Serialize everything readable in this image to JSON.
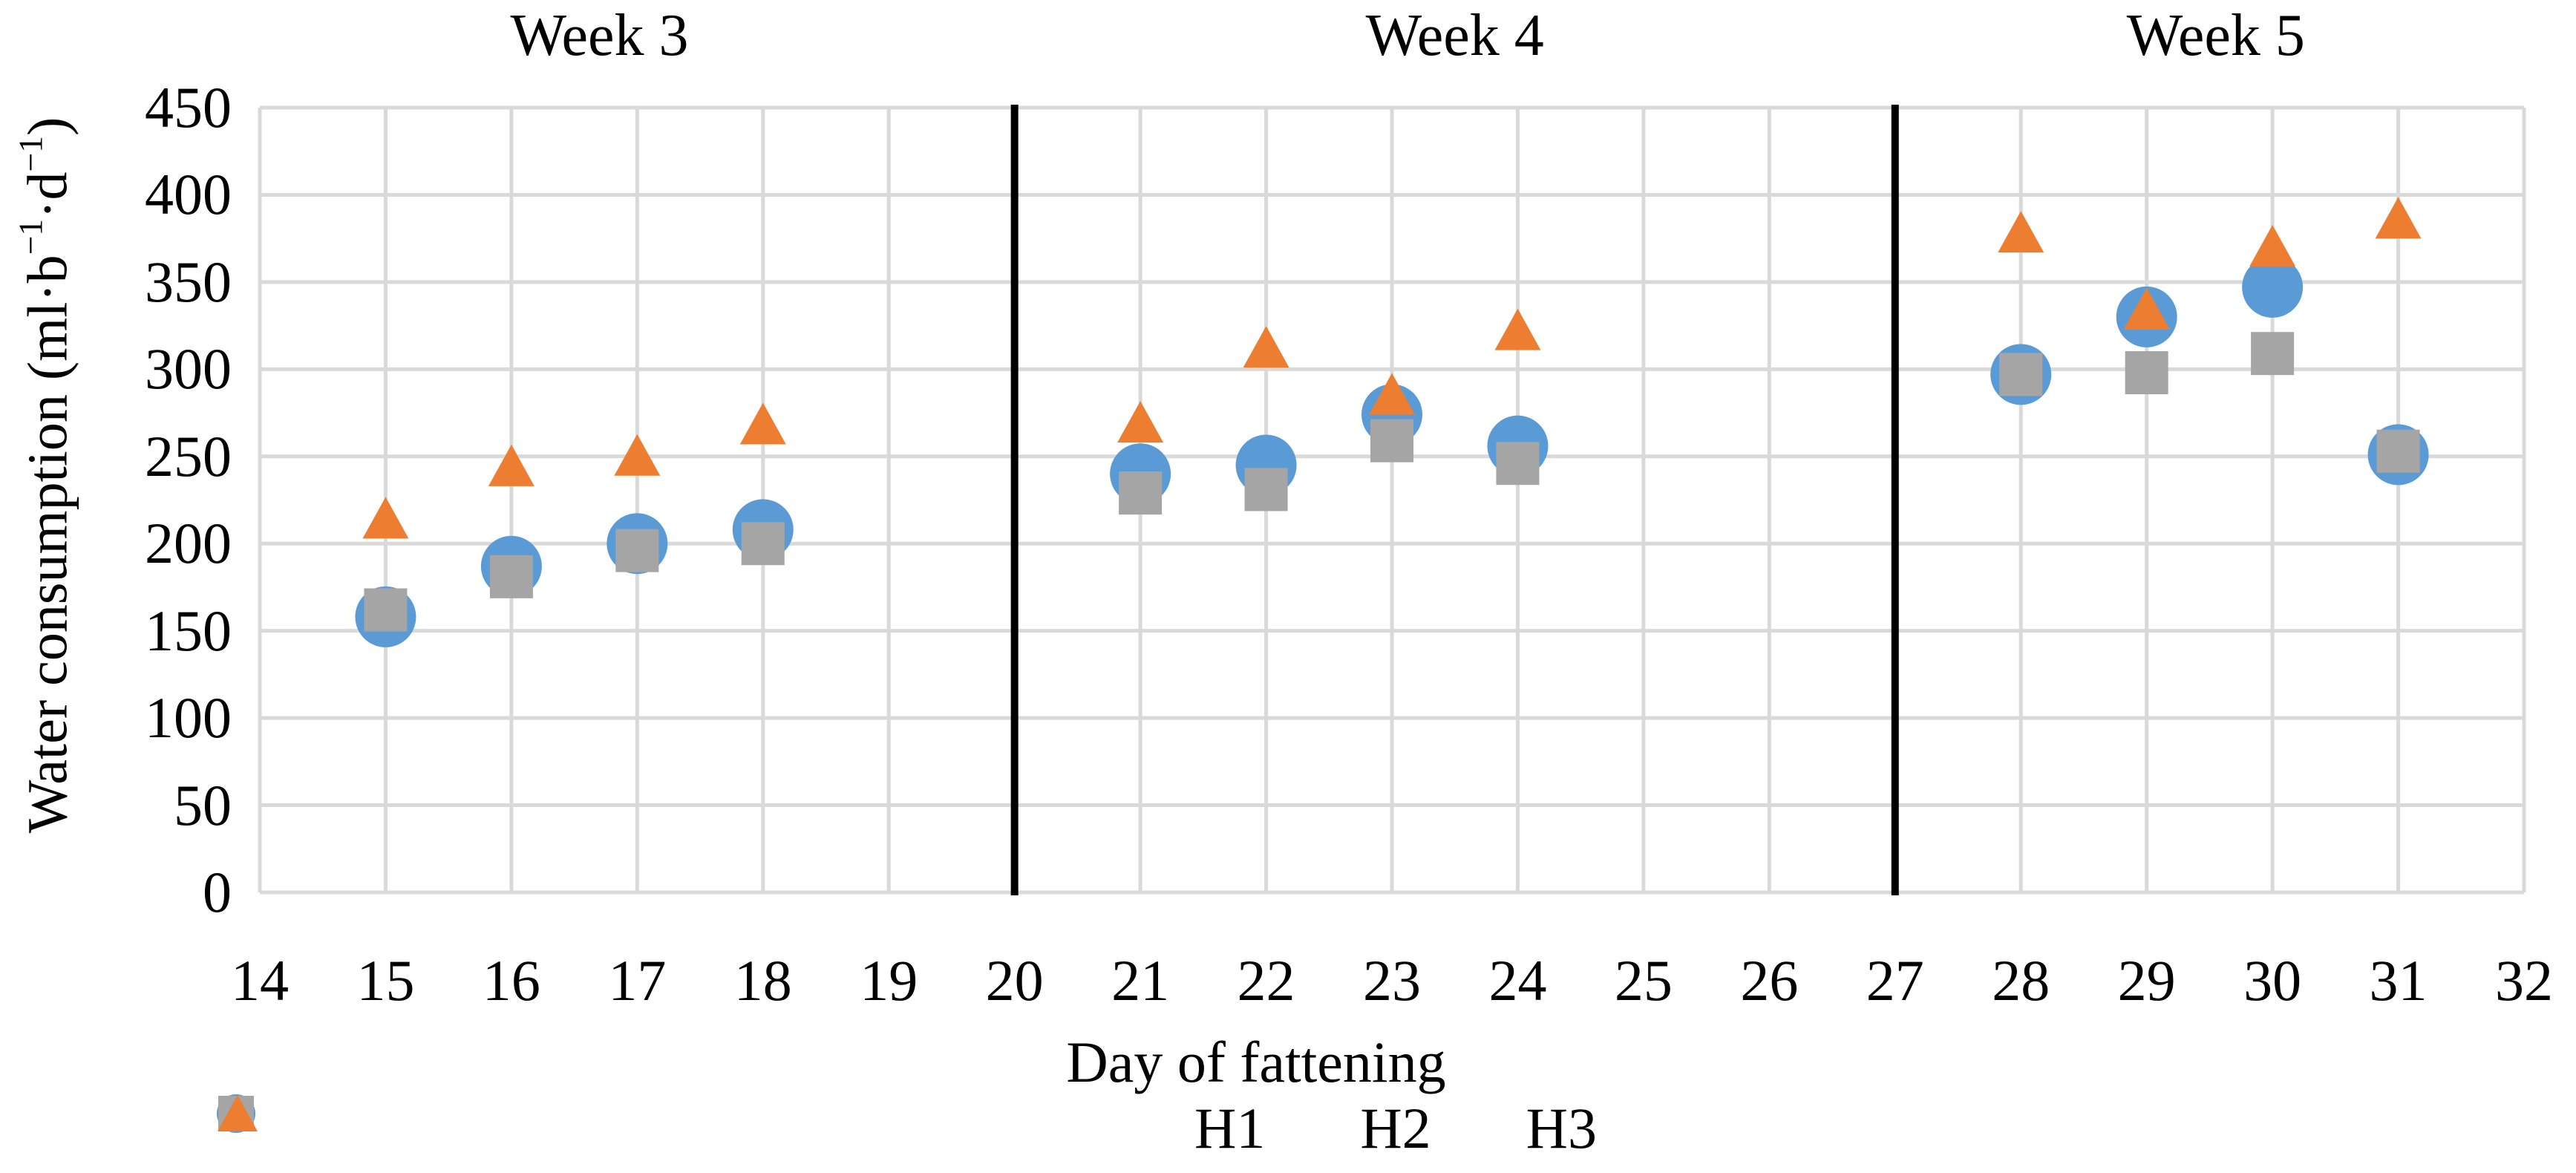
{
  "chart_data": {
    "type": "scatter",
    "title": "",
    "xlabel": "Day of fattening",
    "ylabel": "Water consumption (ml·b⁻¹·d⁻¹)",
    "ylabel_parts": [
      "Water consumption (ml·b",
      "−1",
      "·d",
      "−1",
      ")"
    ],
    "x_range": [
      14,
      32
    ],
    "y_range": [
      0,
      450
    ],
    "y_ticks": [
      0,
      50,
      100,
      150,
      200,
      250,
      300,
      350,
      400,
      450
    ],
    "x_ticks": [
      14,
      15,
      16,
      17,
      18,
      19,
      20,
      21,
      22,
      23,
      24,
      25,
      26,
      27,
      28,
      29,
      30,
      31,
      32
    ],
    "grid": true,
    "legend_position": "bottom",
    "week_sections": [
      {
        "label": "Week 3",
        "x_start": 14,
        "x_end": 20,
        "label_x_day": 16.7
      },
      {
        "label": "Week 4",
        "x_start": 20,
        "x_end": 27,
        "label_x_day": 23.5
      },
      {
        "label": "Week 5",
        "x_start": 27,
        "x_end": 32,
        "label_x_day": 29.55
      }
    ],
    "separators_x": [
      20,
      27
    ],
    "series": [
      {
        "name": "H1",
        "marker": "circle",
        "color": "#5B9BD5",
        "points": [
          [
            15,
            158
          ],
          [
            16,
            187
          ],
          [
            17,
            200
          ],
          [
            18,
            208
          ],
          [
            21,
            240
          ],
          [
            22,
            245
          ],
          [
            23,
            274
          ],
          [
            24,
            256
          ],
          [
            28,
            297
          ],
          [
            29,
            330
          ],
          [
            30,
            347
          ],
          [
            31,
            251
          ]
        ]
      },
      {
        "name": "H2",
        "marker": "square",
        "color": "#A5A5A5",
        "points": [
          [
            15,
            162
          ],
          [
            16,
            181
          ],
          [
            17,
            196
          ],
          [
            18,
            200
          ],
          [
            21,
            229
          ],
          [
            22,
            231
          ],
          [
            23,
            259
          ],
          [
            24,
            246
          ],
          [
            28,
            297
          ],
          [
            29,
            298
          ],
          [
            30,
            309
          ],
          [
            31,
            253
          ]
        ]
      },
      {
        "name": "H3",
        "marker": "triangle",
        "color": "#ED7D31",
        "points": [
          [
            15,
            214
          ],
          [
            16,
            244
          ],
          [
            17,
            250
          ],
          [
            18,
            268
          ],
          [
            21,
            269
          ],
          [
            22,
            312
          ],
          [
            23,
            285
          ],
          [
            24,
            322
          ],
          [
            28,
            378
          ],
          [
            29,
            334
          ],
          [
            30,
            370
          ],
          [
            31,
            386
          ]
        ]
      }
    ],
    "colors": {
      "gridline": "#D9D9D9",
      "separator": "#000000",
      "text": "#000000",
      "background": "#FFFFFF"
    }
  }
}
